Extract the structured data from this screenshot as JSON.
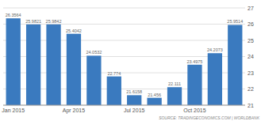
{
  "chart_data": {
    "type": "bar",
    "categories": [
      "Jan 2015",
      null,
      null,
      "Apr 2015",
      null,
      null,
      "Jul 2015",
      null,
      null,
      "Oct 2015",
      null,
      null
    ],
    "values": [
      26.3564,
      25.9821,
      25.9842,
      25.4042,
      24.0532,
      22.774,
      21.6158,
      21.456,
      22.111,
      23.4975,
      24.2073,
      25.9514
    ],
    "color": "#3a7abf",
    "ylim": [
      21,
      27
    ],
    "yticks": [
      21,
      22,
      23,
      24,
      25,
      26,
      27
    ],
    "grid": true,
    "data_labels": true,
    "annotations": [
      "SOURCE: TRADINGECONOMICS.COM | WORLDBANK"
    ]
  }
}
